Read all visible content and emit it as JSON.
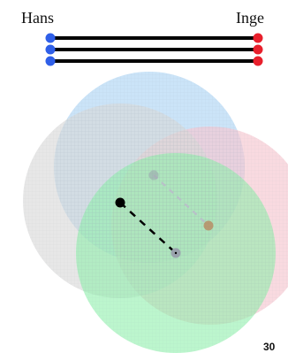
{
  "labels": {
    "left_name": "Hans",
    "right_name": "Inge"
  },
  "page_number": "30",
  "colors": {
    "left_endpoint": "#2f5fe8",
    "right_endpoint": "#e8202c",
    "line": "#000000",
    "circle_blue": "#bcdcf6",
    "circle_pink": "#f6c8d2",
    "circle_gray": "#d8d8d8",
    "circle_green": "#8cf0a8",
    "hatch": "#8e9aaa",
    "marker_gray": "#9aa3ad",
    "marker_brown": "#b88860",
    "marker_black": "#000000"
  },
  "connection_count": 3,
  "circle_count": 4
}
